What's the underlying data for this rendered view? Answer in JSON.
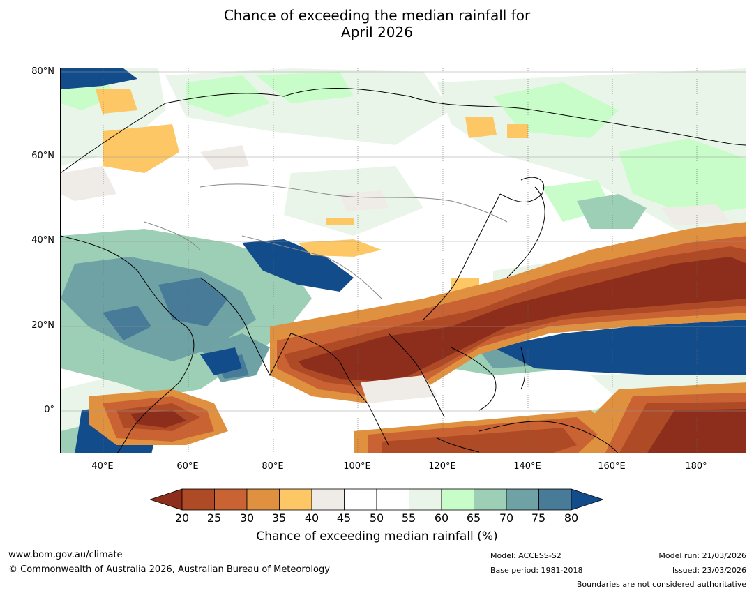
{
  "title_line1": "Chance of exceeding the median rainfall for",
  "title_line2": "April 2026",
  "map": {
    "lat_labels": [
      "80°N",
      "60°N",
      "40°N",
      "20°N",
      "0°"
    ],
    "lon_labels": [
      "40°E",
      "60°E",
      "80°E",
      "100°E",
      "120°E",
      "140°E",
      "160°E",
      "180°"
    ],
    "extent": {
      "lon_min": 30,
      "lon_max": 192,
      "lat_min": -10,
      "lat_max": 80
    }
  },
  "legend": {
    "title": "Chance of exceeding median rainfall (%)",
    "ticks": [
      "20",
      "25",
      "30",
      "35",
      "40",
      "45",
      "50",
      "55",
      "60",
      "65",
      "70",
      "75",
      "80"
    ],
    "colors": [
      "#8c2e1b",
      "#ae4a26",
      "#c96333",
      "#e0913f",
      "#fdc766",
      "#efebe6",
      "#ffffff",
      "#ffffff",
      "#eaf5ea",
      "#c8fcc8",
      "#9ccfb5",
      "#6fa2a5",
      "#487b98",
      "#134c8b"
    ]
  },
  "footer": {
    "url": "www.bom.gov.au/climate",
    "copyright": "© Commonwealth of Australia 2026, Australian Bureau of Meteorology",
    "model": "Model: ACCESS-S2",
    "base_period": "Base period: 1981-2018",
    "model_run": "Model run: 21/03/2026",
    "issued": "Issued: 23/03/2026",
    "disclaimer": "Boundaries are not considered authoritative"
  }
}
